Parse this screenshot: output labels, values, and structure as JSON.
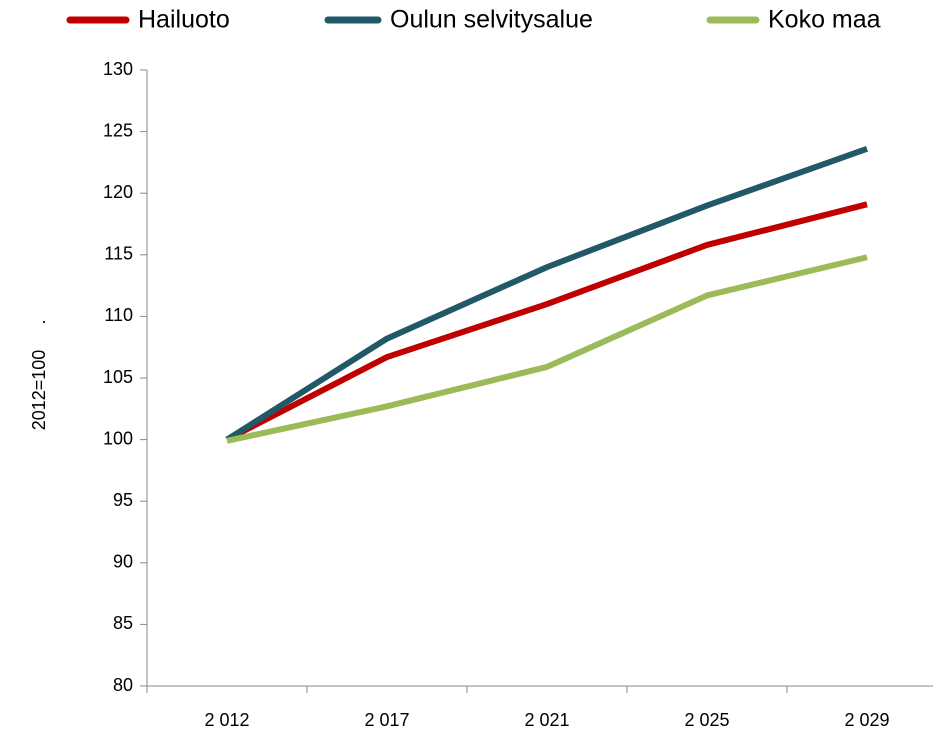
{
  "chart_data": {
    "type": "line",
    "categories": [
      "2 012",
      "2 017",
      "2 021",
      "2 025",
      "2 029"
    ],
    "series": [
      {
        "name": "Hailuoto",
        "color": "#c00000",
        "values": [
          100,
          106.7,
          111,
          115.8,
          119.1
        ]
      },
      {
        "name": "Oulun selvitysalue",
        "color": "#215968",
        "values": [
          100,
          108.2,
          114,
          119,
          123.6
        ]
      },
      {
        "name": "Koko maa",
        "color": "#9bbb59",
        "values": [
          99.9,
          102.7,
          105.9,
          111.7,
          114.8
        ]
      }
    ],
    "y_label": "2012=100",
    "annotation": ".",
    "ylim": [
      80,
      130
    ],
    "yticks": [
      80,
      85,
      90,
      95,
      100,
      105,
      110,
      115,
      120,
      125,
      130
    ],
    "grid": false,
    "legend": "top"
  }
}
